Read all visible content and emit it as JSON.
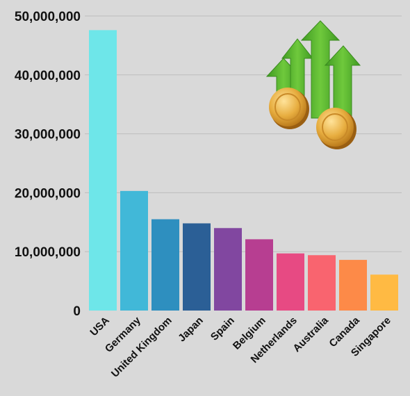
{
  "chart_data": {
    "type": "bar",
    "title": "",
    "xlabel": "",
    "ylabel": "",
    "categories": [
      "USA",
      "Germany",
      "United Kingdom",
      "Japan",
      "Spain",
      "Belgium",
      "Netherlands",
      "Australia",
      "Canada",
      "Singapore"
    ],
    "values": [
      47600000,
      20300000,
      15500000,
      14800000,
      14000000,
      12100000,
      9700000,
      9400000,
      8600000,
      6100000
    ],
    "colors": [
      "#6ee6e9",
      "#41b8d8",
      "#2e8fbf",
      "#2b5f96",
      "#8147a0",
      "#b73e91",
      "#e74a83",
      "#f9646f",
      "#fd8a48",
      "#ffba43"
    ],
    "ylim": [
      0,
      50000000
    ],
    "yticks": [
      0,
      10000000,
      20000000,
      30000000,
      40000000,
      50000000
    ],
    "ytick_labels": [
      "0",
      "10,000,000",
      "20,000,000",
      "30,000,000",
      "40,000,000",
      "50,000,000"
    ],
    "grid": true,
    "legend": "none"
  },
  "decoration": {
    "icon": "growth-arrows-coins-icon",
    "arrow_color": "#5fb832",
    "coin_color": "#e2a93b"
  }
}
